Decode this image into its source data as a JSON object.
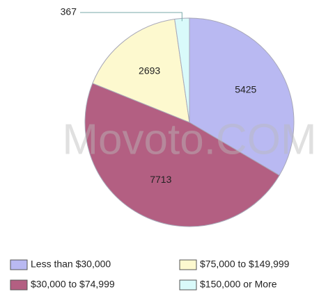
{
  "chart_data": {
    "type": "pie",
    "watermark": "Movoto.COM",
    "categories": [
      "Less than $30,000",
      "$30,000 to $74,999",
      "$75,000 to $149,999",
      "$150,000 or More"
    ],
    "values": [
      5425,
      7713,
      2693,
      367
    ],
    "colors": [
      "#b9b9f2",
      "#b35f82",
      "#fdf9cf",
      "#d9fafa"
    ],
    "legend": "bottom"
  }
}
